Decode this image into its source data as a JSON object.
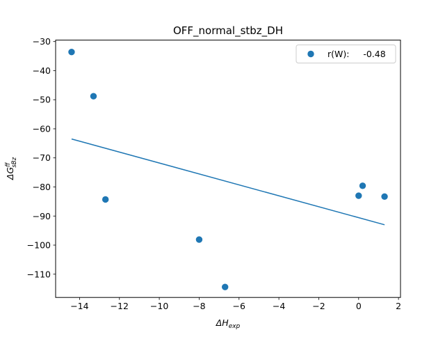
{
  "chart_data": {
    "type": "scatter",
    "title": "OFF_normal_stbz_DH",
    "xlabel_main": "ΔH",
    "xlabel_sub": "exp",
    "ylabel_main": "ΔG",
    "ylabel_sub": "sBz",
    "ylabel_sup": "ff",
    "xlim": [
      -15.2,
      2.1
    ],
    "ylim": [
      -118,
      -29.5
    ],
    "xticks": [
      -14,
      -12,
      -10,
      -8,
      -6,
      -4,
      -2,
      0,
      2
    ],
    "yticks": [
      -30,
      -40,
      -50,
      -60,
      -70,
      -80,
      -90,
      -100,
      -110
    ],
    "xtick_labels": [
      "−14",
      "−12",
      "−10",
      "−8",
      "−6",
      "−4",
      "−2",
      "0",
      "2"
    ],
    "ytick_labels": [
      "−30",
      "−40",
      "−50",
      "−60",
      "−70",
      "−80",
      "−90",
      "−100",
      "−110"
    ],
    "series": [
      {
        "name": "r(W):     -0.48",
        "type": "scatter",
        "color": "#1f77b4",
        "points": [
          {
            "x": -14.4,
            "y": -33.6
          },
          {
            "x": -13.3,
            "y": -48.8
          },
          {
            "x": -12.7,
            "y": -84.3
          },
          {
            "x": -8.0,
            "y": -98.1
          },
          {
            "x": -6.7,
            "y": -114.4
          },
          {
            "x": 0.0,
            "y": -83.0
          },
          {
            "x": 0.2,
            "y": -79.6
          },
          {
            "x": 1.3,
            "y": -83.3
          }
        ]
      }
    ],
    "fit_line": {
      "color": "#1f77b4",
      "x": [
        -14.4,
        1.3
      ],
      "y": [
        -63.5,
        -93.0
      ]
    },
    "legend_position": "upper right",
    "grid": false
  }
}
